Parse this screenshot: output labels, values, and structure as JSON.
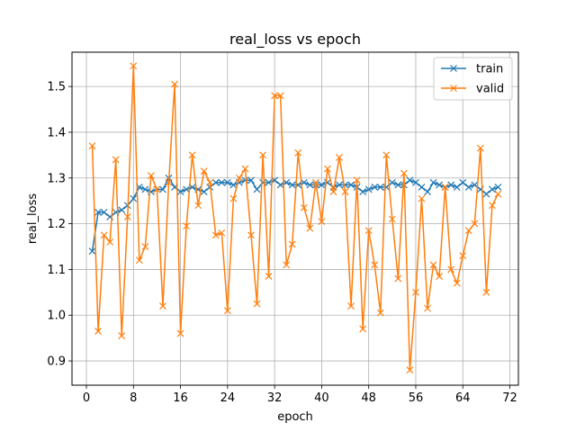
{
  "chart_data": {
    "type": "line",
    "title": "real_loss vs epoch",
    "xlabel": "epoch",
    "ylabel": "real_loss",
    "xlim": [
      -2.45,
      73.45
    ],
    "ylim": [
      0.847,
      1.575
    ],
    "xticks": [
      0,
      8,
      16,
      24,
      32,
      40,
      48,
      56,
      64,
      72
    ],
    "yticks": [
      0.9,
      1.0,
      1.1,
      1.2,
      1.3,
      1.4,
      1.5
    ],
    "ytick_labels": [
      "0.9",
      "1.0",
      "1.1",
      "1.2",
      "1.3",
      "1.4",
      "1.5"
    ],
    "grid": true,
    "legend_position": "top-right",
    "marker": "x",
    "x": [
      1,
      2,
      3,
      4,
      5,
      6,
      7,
      8,
      9,
      10,
      11,
      12,
      13,
      14,
      15,
      16,
      17,
      18,
      19,
      20,
      21,
      22,
      23,
      24,
      25,
      26,
      27,
      28,
      29,
      30,
      31,
      32,
      33,
      34,
      35,
      36,
      37,
      38,
      39,
      40,
      41,
      42,
      43,
      44,
      45,
      46,
      47,
      48,
      49,
      50,
      51,
      52,
      53,
      54,
      55,
      56,
      57,
      58,
      59,
      60,
      61,
      62,
      63,
      64,
      65,
      66,
      67,
      68,
      69,
      70
    ],
    "series": [
      {
        "name": "train",
        "color": "#1f77b4",
        "values": [
          1.14,
          1.225,
          1.225,
          1.215,
          1.225,
          1.23,
          1.24,
          1.255,
          1.28,
          1.275,
          1.27,
          1.275,
          1.275,
          1.3,
          1.28,
          1.27,
          1.275,
          1.28,
          1.275,
          1.27,
          1.28,
          1.29,
          1.29,
          1.29,
          1.285,
          1.29,
          1.295,
          1.295,
          1.275,
          1.29,
          1.29,
          1.295,
          1.285,
          1.29,
          1.285,
          1.285,
          1.29,
          1.285,
          1.285,
          1.285,
          1.29,
          1.28,
          1.285,
          1.285,
          1.285,
          1.28,
          1.27,
          1.275,
          1.28,
          1.28,
          1.28,
          1.29,
          1.285,
          1.285,
          1.295,
          1.29,
          1.28,
          1.27,
          1.29,
          1.285,
          1.28,
          1.285,
          1.28,
          1.29,
          1.28,
          1.285,
          1.275,
          1.265,
          1.275,
          1.28
        ]
      },
      {
        "name": "valid",
        "color": "#ff7f0e",
        "values": [
          1.37,
          0.965,
          1.175,
          1.16,
          1.34,
          0.955,
          1.215,
          1.545,
          1.12,
          1.15,
          1.305,
          1.275,
          1.02,
          1.29,
          1.505,
          0.96,
          1.195,
          1.35,
          1.24,
          1.315,
          1.29,
          1.175,
          1.18,
          1.01,
          1.255,
          1.3,
          1.32,
          1.175,
          1.025,
          1.35,
          1.085,
          1.48,
          1.48,
          1.11,
          1.155,
          1.355,
          1.235,
          1.19,
          1.29,
          1.205,
          1.32,
          1.27,
          1.345,
          1.27,
          1.02,
          1.295,
          0.97,
          1.185,
          1.11,
          1.005,
          1.35,
          1.21,
          1.08,
          1.31,
          0.88,
          1.05,
          1.255,
          1.015,
          1.11,
          1.085,
          1.28,
          1.1,
          1.07,
          1.13,
          1.185,
          1.2,
          1.365,
          1.05,
          1.24,
          1.265
        ]
      }
    ]
  }
}
